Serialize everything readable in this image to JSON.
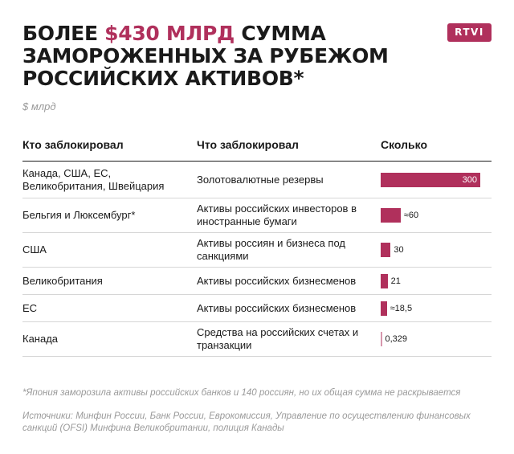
{
  "header": {
    "title_pre": "Более ",
    "title_accent": "$430 млрд",
    "title_post": " сумма замороженных за рубежом российских активов*",
    "logo": "RTVI",
    "unit": "$ млрд"
  },
  "colors": {
    "accent": "#b0305c",
    "text": "#1a1a1a",
    "muted": "#9a9a9a"
  },
  "chart_data": {
    "type": "table",
    "columns": [
      "Кто заблокировал",
      "Что заблокировал",
      "Сколько"
    ],
    "rows": [
      {
        "who": "Канада, США, ЕС, Великобритания, Швейцария",
        "what": "Золотовалютные резервы",
        "value": 300,
        "label": "300"
      },
      {
        "who": "Бельгия и Люксембург*",
        "what": "Активы российских инвесторов в иностранные бумаги",
        "value": 60,
        "label": "≈60"
      },
      {
        "who": "США",
        "what": "Активы россиян и бизнеса под санкциями",
        "value": 30,
        "label": "30"
      },
      {
        "who": "Великобритания",
        "what": "Активы российских бизнесменов",
        "value": 21,
        "label": "21"
      },
      {
        "who": "ЕС",
        "what": "Активы российских бизнесменов",
        "value": 18.5,
        "label": "≈18,5"
      },
      {
        "who": "Канада",
        "what": "Средства на российских счетах и транзакции",
        "value": 0.329,
        "label": "0,329"
      }
    ]
  },
  "footer": {
    "footnote": "*Япония заморозила активы российских банков и 140 россиян, но их общая сумма не раскрывается",
    "sources": "Источники: Минфин России, Банк России, Еврокомиссия, Управление по осуществлению финансовых санкций (OFSI) Минфина Великобритании, полиция Канады"
  }
}
